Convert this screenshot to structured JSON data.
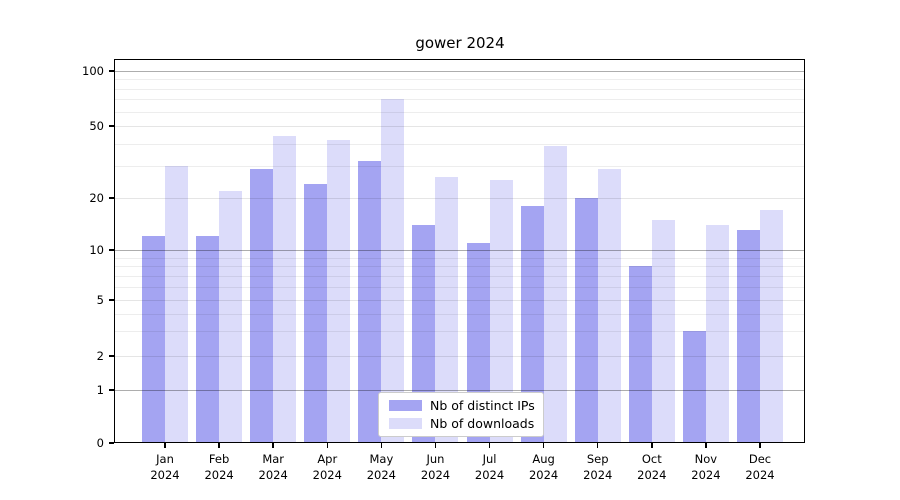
{
  "title": "gower 2024",
  "y_axis": {
    "ticks": [
      0,
      1,
      2,
      5,
      10,
      20,
      50,
      100
    ],
    "minor_gridlines": [
      3,
      4,
      6,
      7,
      8,
      9,
      30,
      40,
      60,
      70,
      80,
      90
    ],
    "scale": "symlog"
  },
  "x_axis": {
    "months": [
      "Jan",
      "Feb",
      "Mar",
      "Apr",
      "May",
      "Jun",
      "Jul",
      "Aug",
      "Sep",
      "Oct",
      "Nov",
      "Dec"
    ],
    "year": "2024"
  },
  "colors": {
    "distinct_ips": "#a4a4f2",
    "downloads": "#dcdcfa",
    "axis": "#000000",
    "legend_border": "#cccccc"
  },
  "chart_data": {
    "type": "bar",
    "title": "gower 2024",
    "categories": [
      "Jan 2024",
      "Feb 2024",
      "Mar 2024",
      "Apr 2024",
      "May 2024",
      "Jun 2024",
      "Jul 2024",
      "Aug 2024",
      "Sep 2024",
      "Oct 2024",
      "Nov 2024",
      "Dec 2024"
    ],
    "series": [
      {
        "name": "Nb of distinct IPs",
        "color": "#a4a4f2",
        "values": [
          12,
          12,
          29,
          24,
          32,
          14,
          11,
          18,
          20,
          8,
          3,
          13
        ]
      },
      {
        "name": "Nb of downloads",
        "color": "#dcdcfa",
        "values": [
          30,
          22,
          44,
          42,
          70,
          26,
          25,
          39,
          29,
          15,
          14,
          17
        ]
      }
    ],
    "xlabel": "",
    "ylabel": "",
    "y_ticks": [
      0,
      1,
      2,
      5,
      10,
      20,
      50,
      100
    ],
    "ylim": [
      0,
      130
    ],
    "y_scale": "symlog",
    "grid": true,
    "legend_position": "lower center"
  }
}
